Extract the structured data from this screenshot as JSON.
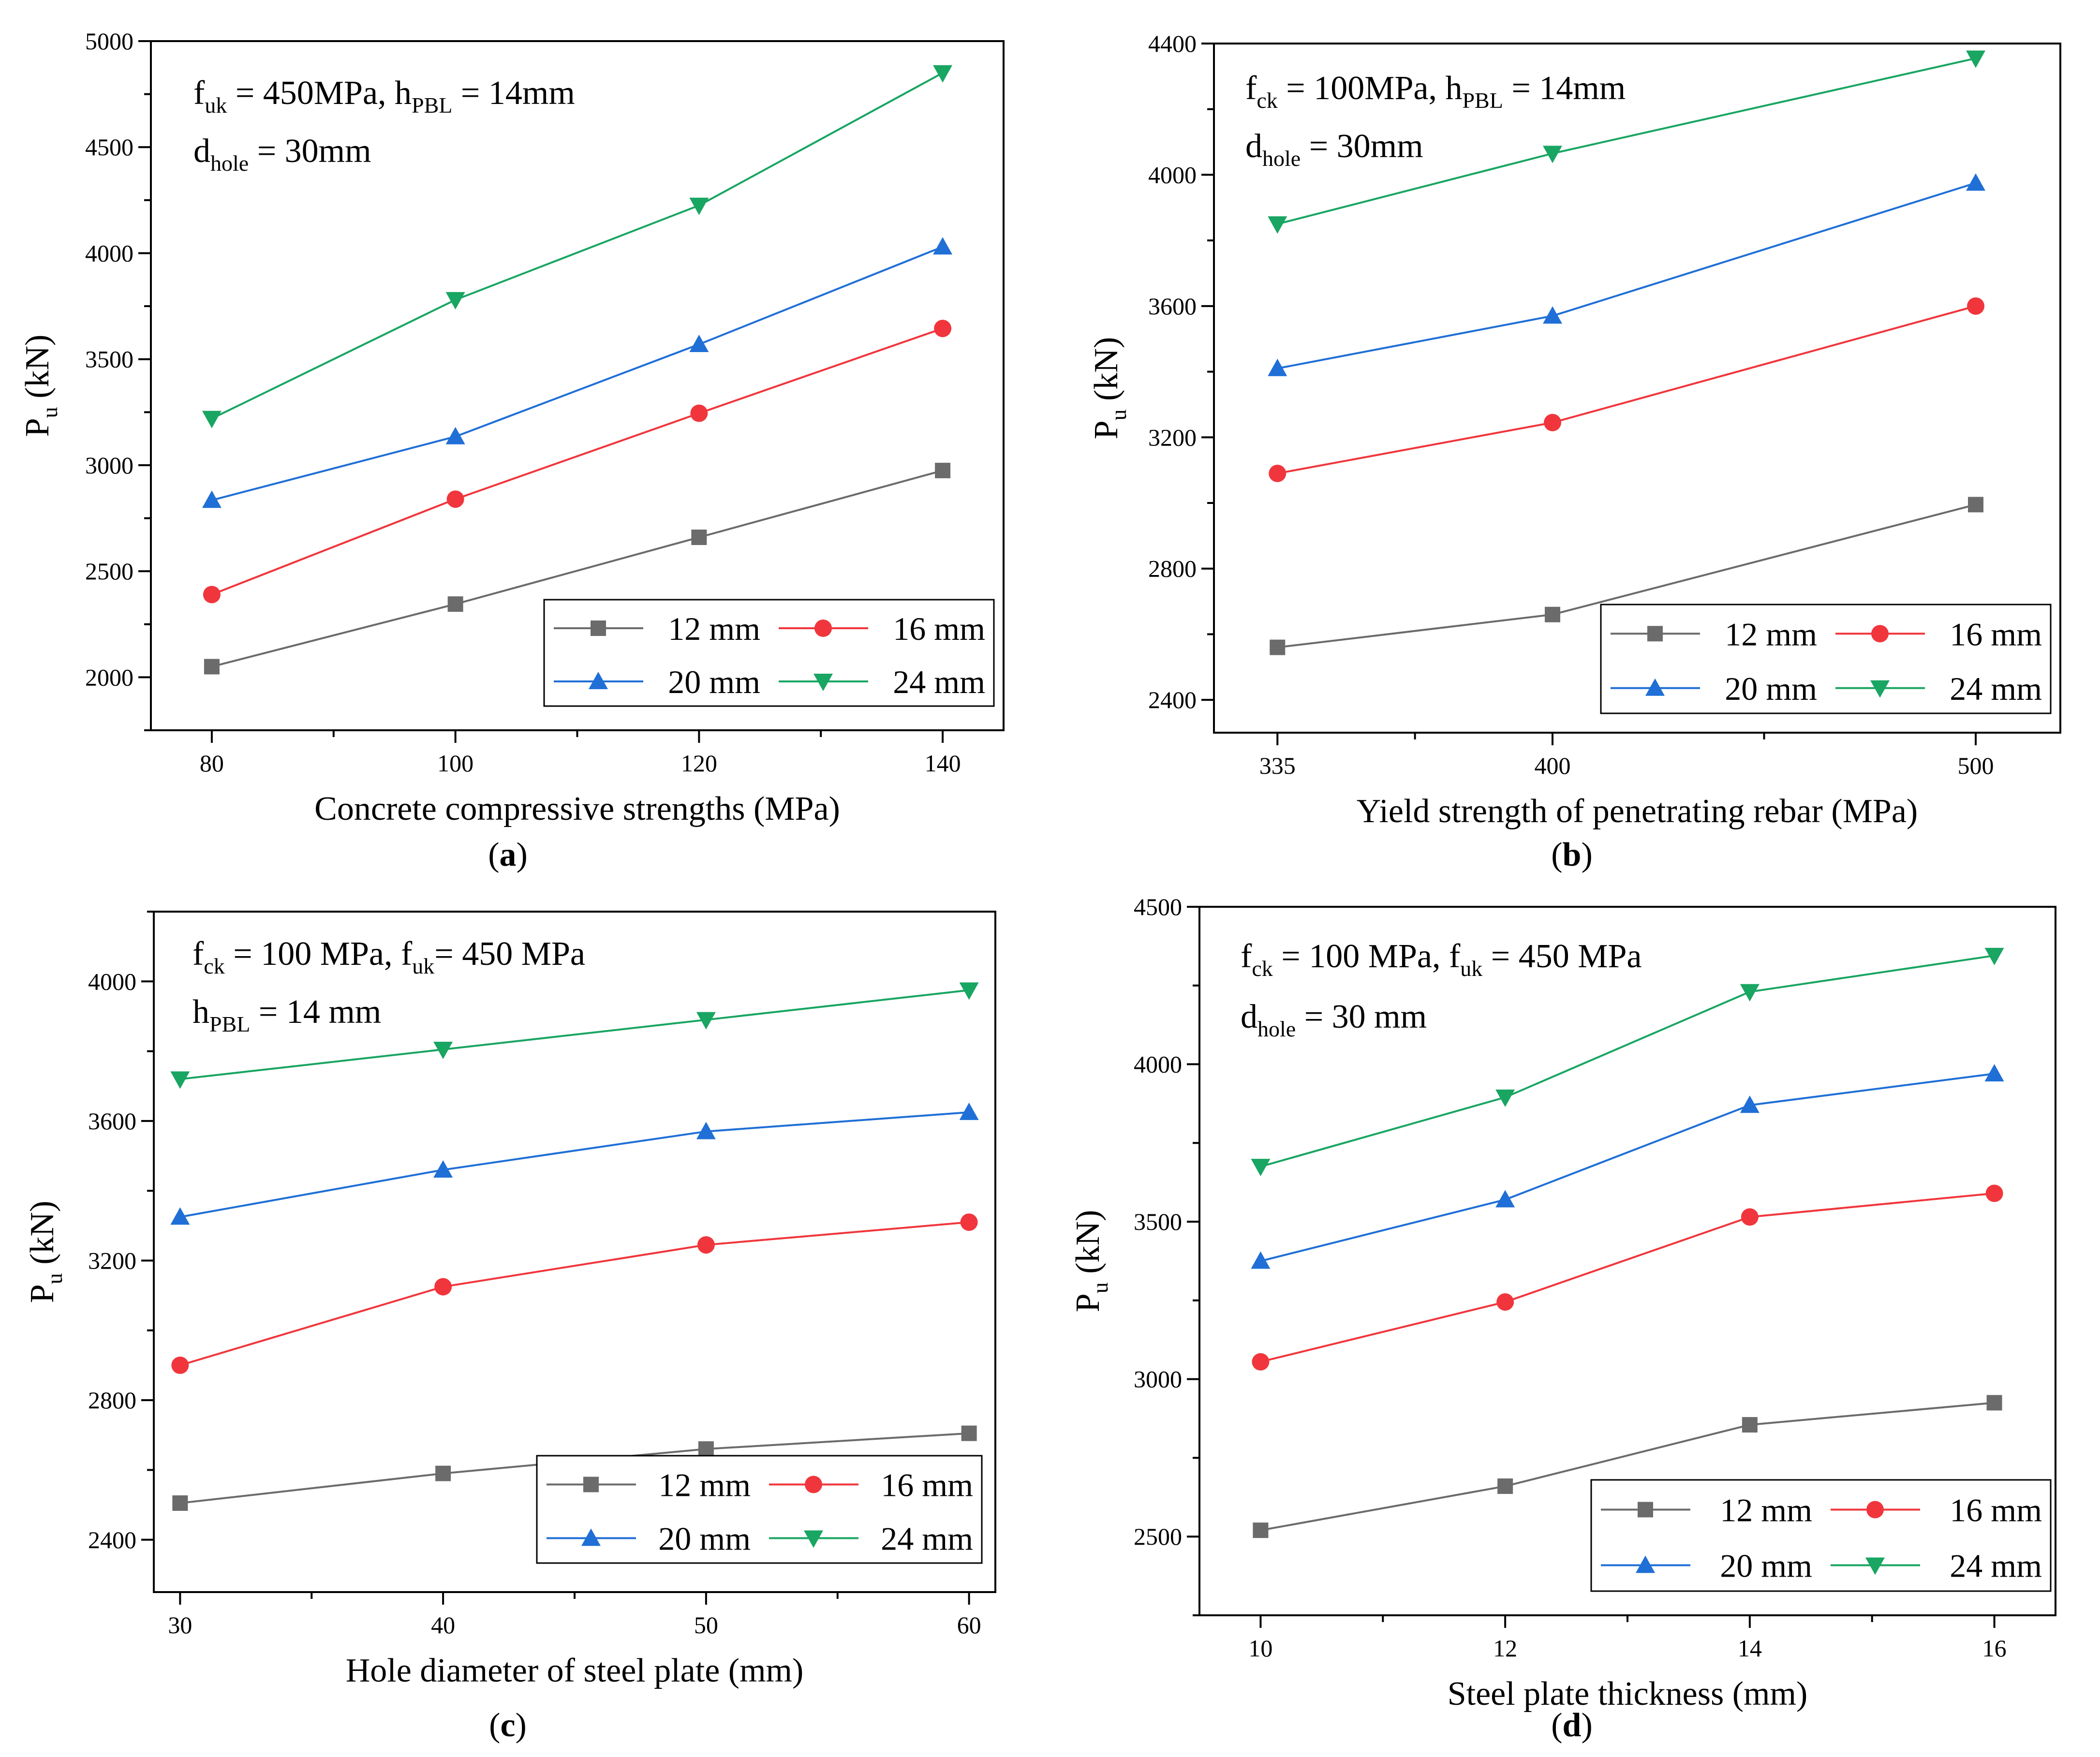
{
  "figure": {
    "charts": [
      {
        "id": "a",
        "type": "line",
        "caption": "a",
        "xlabel": "Concrete compressive strengths (MPa)",
        "ylabel": "P",
        "ylabel_sub": "u",
        "ylabel_unit": " (kN)",
        "x": [
          80,
          100,
          120,
          140
        ],
        "xticks": [
          80,
          100,
          120,
          140
        ],
        "xlim": [
          75,
          145
        ],
        "ylim": [
          1750,
          5000
        ],
        "yticks": [
          2000,
          2500,
          3000,
          3500,
          4000,
          4500,
          5000
        ],
        "annotations": [
          [
            {
              "t": "f"
            },
            {
              "t": "uk",
              "sub": true
            },
            {
              "t": " = 450MPa, h"
            },
            {
              "t": "PBL",
              "sub": true
            },
            {
              "t": " = 14mm"
            }
          ],
          [
            {
              "t": "d"
            },
            {
              "t": "hole",
              "sub": true
            },
            {
              "t": " = 30mm"
            }
          ]
        ],
        "series": [
          {
            "name": "12 mm",
            "values": [
              2050,
              2345,
              2660,
              2975
            ]
          },
          {
            "name": "16 mm",
            "values": [
              2390,
              2840,
              3245,
              3645
            ]
          },
          {
            "name": "20 mm",
            "values": [
              2835,
              3135,
              3570,
              4030
            ]
          },
          {
            "name": "24 mm",
            "values": [
              3220,
              3780,
              4225,
              4850
            ]
          }
        ]
      },
      {
        "id": "b",
        "type": "line",
        "caption": "b",
        "xlabel": "Yield strength of penetrating rebar (MPa)",
        "ylabel": "P",
        "ylabel_sub": "u",
        "ylabel_unit": " (kN)",
        "x": [
          335,
          400,
          500
        ],
        "xticks": [
          335,
          400,
          500
        ],
        "xlim": [
          320,
          520
        ],
        "ylim": [
          2300,
          4400
        ],
        "yticks": [
          2400,
          2800,
          3200,
          3600,
          4000,
          4400
        ],
        "annotations": [
          [
            {
              "t": "f"
            },
            {
              "t": "ck",
              "sub": true
            },
            {
              "t": " = 100MPa, h"
            },
            {
              "t": "PBL",
              "sub": true
            },
            {
              "t": " = 14mm"
            }
          ],
          [
            {
              "t": "d"
            },
            {
              "t": "hole",
              "sub": true
            },
            {
              "t": " = 30mm"
            }
          ]
        ],
        "series": [
          {
            "name": "12 mm",
            "values": [
              2560,
              2660,
              2995
            ]
          },
          {
            "name": "16 mm",
            "values": [
              3090,
              3245,
              3600
            ]
          },
          {
            "name": "20 mm",
            "values": [
              3410,
              3570,
              3975
            ]
          },
          {
            "name": "24 mm",
            "values": [
              3850,
              4065,
              4355
            ]
          }
        ]
      },
      {
        "id": "c",
        "type": "line",
        "caption": "c",
        "xlabel": "Hole diameter of steel plate (mm)",
        "ylabel": "P",
        "ylabel_sub": "u",
        "ylabel_unit": " (kN)",
        "x": [
          30,
          40,
          50,
          60
        ],
        "xticks": [
          30,
          40,
          50,
          60
        ],
        "xlim": [
          29,
          61
        ],
        "ylim": [
          2250,
          4200
        ],
        "yticks": [
          2400,
          2800,
          3200,
          3600,
          4000
        ],
        "annotations": [
          [
            {
              "t": "f"
            },
            {
              "t": "ck",
              "sub": true
            },
            {
              "t": " = 100 MPa, f"
            },
            {
              "t": "uk",
              "sub": true
            },
            {
              "t": "=  450 MPa"
            }
          ],
          [
            {
              "t": "h"
            },
            {
              "t": "PBL",
              "sub": true
            },
            {
              "t": " = 14 mm"
            }
          ]
        ],
        "series": [
          {
            "name": "12 mm",
            "values": [
              2505,
              2590,
              2660,
              2705
            ]
          },
          {
            "name": "16 mm",
            "values": [
              2900,
              3125,
              3245,
              3310
            ]
          },
          {
            "name": "20 mm",
            "values": [
              3325,
              3460,
              3570,
              3625
            ]
          },
          {
            "name": "24 mm",
            "values": [
              3720,
              3805,
              3890,
              3975
            ]
          }
        ]
      },
      {
        "id": "d",
        "type": "line",
        "caption": "d",
        "xlabel": "Steel plate thickness (mm)",
        "ylabel": "P",
        "ylabel_sub": "u",
        "ylabel_unit": " (kN)",
        "x": [
          10,
          12,
          14,
          16
        ],
        "xticks": [
          10,
          12,
          14,
          16
        ],
        "xlim": [
          9.5,
          16.5
        ],
        "ylim": [
          2250,
          4500
        ],
        "yticks": [
          2500,
          3000,
          3500,
          4000,
          4500
        ],
        "annotations": [
          [
            {
              "t": "f"
            },
            {
              "t": "ck",
              "sub": true
            },
            {
              "t": " = 100 MPa, f"
            },
            {
              "t": "uk",
              "sub": true
            },
            {
              "t": " = 450 MPa"
            }
          ],
          [
            {
              "t": "d"
            },
            {
              "t": "hole",
              "sub": true
            },
            {
              "t": " = 30 mm"
            }
          ]
        ],
        "series": [
          {
            "name": "12 mm",
            "values": [
              2520,
              2660,
              2855,
              2925
            ]
          },
          {
            "name": "16 mm",
            "values": [
              3055,
              3245,
              3515,
              3590
            ]
          },
          {
            "name": "20 mm",
            "values": [
              3375,
              3570,
              3870,
              3970
            ]
          },
          {
            "name": "24 mm",
            "values": [
              3675,
              3895,
              4230,
              4345
            ]
          }
        ]
      }
    ],
    "series_styles": [
      {
        "color": "#6b6b6b",
        "marker": "square"
      },
      {
        "color": "#f0363c",
        "marker": "circle"
      },
      {
        "color": "#1f6fd6",
        "marker": "triangle-up"
      },
      {
        "color": "#19a562",
        "marker": "triangle-down"
      }
    ]
  }
}
